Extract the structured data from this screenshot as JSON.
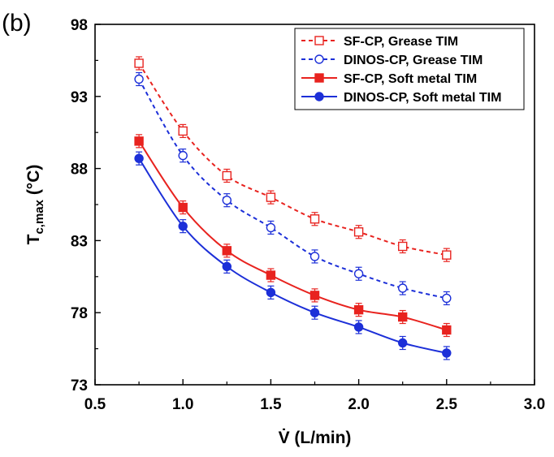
{
  "panel_label": "(b)",
  "chart_data": {
    "type": "line",
    "title": "",
    "xlabel": "V̇ (L/min)",
    "ylabel_main": "T",
    "ylabel_sub": "c,max",
    "ylabel_unit": " (°C)",
    "xlim": [
      0.5,
      3.0
    ],
    "ylim": [
      73,
      98
    ],
    "xticks": [
      0.5,
      1.0,
      1.5,
      2.0,
      2.5,
      3.0
    ],
    "xtick_labels": [
      "0.5",
      "1.0",
      "1.5",
      "2.0",
      "2.5",
      "3.0"
    ],
    "yticks": [
      73,
      78,
      83,
      88,
      93,
      98
    ],
    "ytick_labels": [
      "73",
      "78",
      "83",
      "88",
      "93",
      "98"
    ],
    "grid": false,
    "legend_position": "top-right",
    "x": [
      0.75,
      1.0,
      1.25,
      1.5,
      1.75,
      2.0,
      2.25,
      2.5
    ],
    "series": [
      {
        "name": "SF-CP, Grease TIM",
        "color": "#e8231f",
        "marker": "square-open",
        "line": "dashed",
        "values": [
          95.3,
          90.6,
          87.5,
          86.0,
          84.5,
          83.6,
          82.6,
          82.0
        ]
      },
      {
        "name": "DINOS-CP, Grease TIM",
        "color": "#1c2fd8",
        "marker": "circle-open",
        "line": "dashed",
        "values": [
          94.2,
          88.9,
          85.8,
          83.9,
          81.9,
          80.7,
          79.7,
          79.0
        ]
      },
      {
        "name": "SF-CP, Soft metal TIM",
        "color": "#e8231f",
        "marker": "square-filled",
        "line": "solid",
        "values": [
          89.9,
          85.3,
          82.3,
          80.6,
          79.2,
          78.2,
          77.7,
          76.8
        ]
      },
      {
        "name": "DINOS-CP, Soft metal TIM",
        "color": "#1c2fd8",
        "marker": "circle-filled",
        "line": "solid",
        "values": [
          88.7,
          84.0,
          81.2,
          79.4,
          78.0,
          77.0,
          75.9,
          75.2
        ]
      }
    ]
  }
}
